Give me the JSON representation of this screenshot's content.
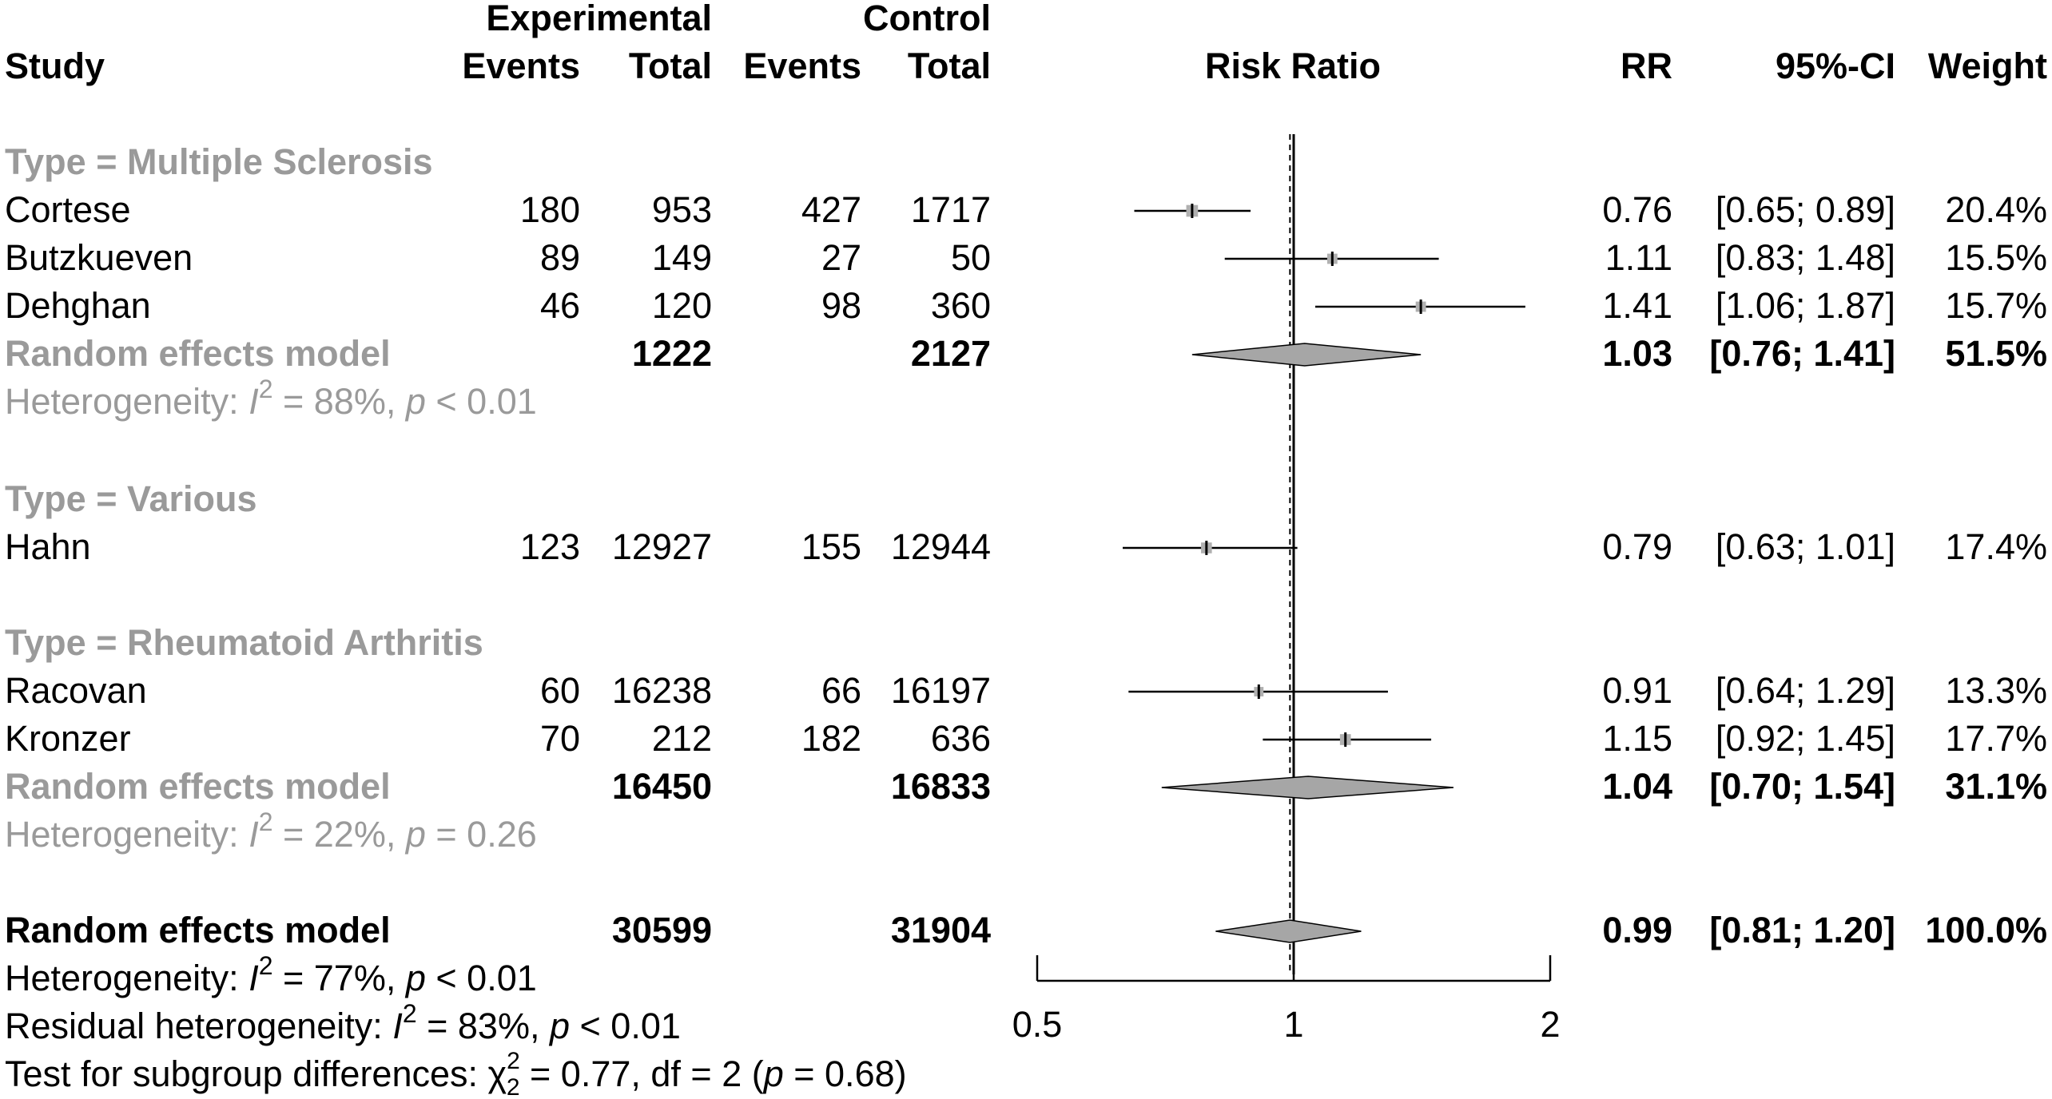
{
  "chart_data": {
    "type": "forest",
    "columns": {
      "study": "Study",
      "experimental": "Experimental",
      "control": "Control",
      "events": "Events",
      "total": "Total",
      "risk_ratio": "Risk Ratio",
      "rr": "RR",
      "ci": "95%-CI",
      "weight": "Weight"
    },
    "x_axis": {
      "scale": "log",
      "ticks": [
        0.5,
        1,
        2
      ],
      "tick_labels": [
        "0.5",
        "1",
        "2"
      ],
      "range": [
        0.5,
        2
      ]
    },
    "overall_line": 0.99,
    "subgroups": [
      {
        "label": "Type = Multiple Sclerosis",
        "studies": [
          {
            "name": "Cortese",
            "e_events": "180",
            "e_total": "953",
            "c_events": "427",
            "c_total": "1717",
            "rr": 0.76,
            "lower": 0.65,
            "upper": 0.89,
            "rr_text": "0.76",
            "ci_text": "[0.65; 0.89]",
            "weight_text": "20.4%",
            "weight": 20.4
          },
          {
            "name": "Butzkueven",
            "e_events": "89",
            "e_total": "149",
            "c_events": "27",
            "c_total": "50",
            "rr": 1.11,
            "lower": 0.83,
            "upper": 1.48,
            "rr_text": "1.11",
            "ci_text": "[0.83; 1.48]",
            "weight_text": "15.5%",
            "weight": 15.5
          },
          {
            "name": "Dehghan",
            "e_events": "46",
            "e_total": "120",
            "c_events": "98",
            "c_total": "360",
            "rr": 1.41,
            "lower": 1.06,
            "upper": 1.87,
            "rr_text": "1.41",
            "ci_text": "[1.06; 1.87]",
            "weight_text": "15.7%",
            "weight": 15.7
          }
        ],
        "model": {
          "label": "Random effects model",
          "e_total": "1222",
          "c_total": "2127",
          "rr": 1.03,
          "lower": 0.76,
          "upper": 1.41,
          "rr_text": "1.03",
          "ci_text": "[0.76; 1.41]",
          "weight_text": "51.5%"
        },
        "heterogeneity": {
          "prefix": "Heterogeneity: ",
          "i": "I",
          "sup": "2",
          "mid": " = 88%, ",
          "p": "p",
          "suffix": " < 0.01"
        }
      },
      {
        "label": "Type = Various",
        "studies": [
          {
            "name": "Hahn",
            "e_events": "123",
            "e_total": "12927",
            "c_events": "155",
            "c_total": "12944",
            "rr": 0.79,
            "lower": 0.63,
            "upper": 1.01,
            "rr_text": "0.79",
            "ci_text": "[0.63; 1.01]",
            "weight_text": "17.4%",
            "weight": 17.4
          }
        ]
      },
      {
        "label": "Type = Rheumatoid Arthritis",
        "studies": [
          {
            "name": "Racovan",
            "e_events": "60",
            "e_total": "16238",
            "c_events": "66",
            "c_total": "16197",
            "rr": 0.91,
            "lower": 0.64,
            "upper": 1.29,
            "rr_text": "0.91",
            "ci_text": "[0.64; 1.29]",
            "weight_text": "13.3%",
            "weight": 13.3
          },
          {
            "name": "Kronzer",
            "e_events": "70",
            "e_total": "212",
            "c_events": "182",
            "c_total": "636",
            "rr": 1.15,
            "lower": 0.92,
            "upper": 1.45,
            "rr_text": "1.15",
            "ci_text": "[0.92; 1.45]",
            "weight_text": "17.7%",
            "weight": 17.7
          }
        ],
        "model": {
          "label": "Random effects model",
          "e_total": "16450",
          "c_total": "16833",
          "rr": 1.04,
          "lower": 0.7,
          "upper": 1.54,
          "rr_text": "1.04",
          "ci_text": "[0.70; 1.54]",
          "weight_text": "31.1%"
        },
        "heterogeneity": {
          "prefix": "Heterogeneity: ",
          "i": "I",
          "sup": "2",
          "mid": " = 22%, ",
          "p": "p",
          "suffix": " = 0.26"
        }
      }
    ],
    "overall": {
      "label": "Random effects model",
      "e_total": "30599",
      "c_total": "31904",
      "rr": 0.99,
      "lower": 0.81,
      "upper": 1.2,
      "rr_text": "0.99",
      "ci_text": "[0.81; 1.20]",
      "weight_text": "100.0%"
    },
    "footnotes": {
      "heterogeneity": {
        "prefix": "Heterogeneity: ",
        "i": "I",
        "sup": "2",
        "mid": " = 77%, ",
        "p": "p",
        "suffix": " < 0.01"
      },
      "residual": {
        "prefix": "Residual heterogeneity: ",
        "i": "I",
        "sup": "2",
        "mid": " = 83%, ",
        "p": "p",
        "suffix": " < 0.01"
      },
      "subgroup_test": {
        "prefix": "Test for subgroup differences: ",
        "chi": "χ",
        "sup": "2",
        "sub": "2",
        "mid": " = 0.77, df = 2 (",
        "p": "p",
        "suffix": " = 0.68)"
      }
    },
    "colors": {
      "subgroup_text": "#9a9a9a",
      "square": "#b0b0b0",
      "diamond": "#a6a6a6",
      "line": "#000000"
    }
  }
}
